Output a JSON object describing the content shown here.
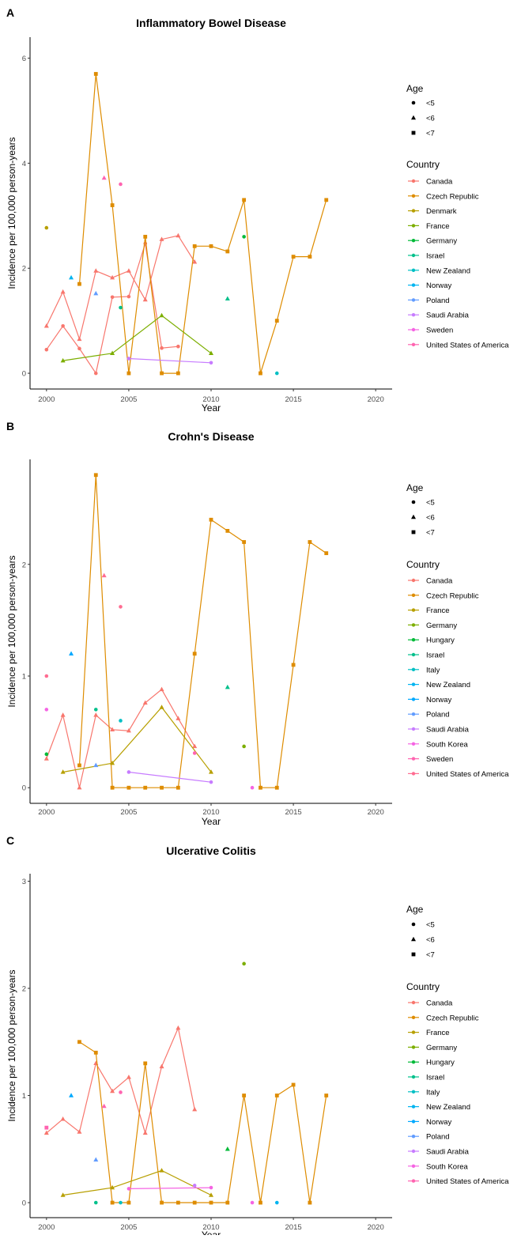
{
  "chart_data": [
    {
      "panel_label": "A",
      "type": "line",
      "title": "Inflammatory Bowel Disease",
      "xlabel": "Year",
      "ylabel": "Incidence per 100,000 person-years",
      "xlim": [
        1999,
        2021
      ],
      "ylim": [
        -0.3,
        6.4
      ],
      "xticks": [
        2000,
        2005,
        2010,
        2015,
        2020
      ],
      "yticks": [
        0,
        2,
        4,
        6
      ],
      "grid": false,
      "legend_position": "right",
      "age_legend": {
        "title": "Age",
        "entries": [
          {
            "label": "<5",
            "shape": "circle"
          },
          {
            "label": "<6",
            "shape": "triangle"
          },
          {
            "label": "<7",
            "shape": "square"
          }
        ]
      },
      "country_legend": {
        "title": "Country",
        "entries": [
          {
            "label": "Canada",
            "color": "#F8766D"
          },
          {
            "label": "Czech Republic",
            "color": "#DE8C00"
          },
          {
            "label": "Denmark",
            "color": "#B79F00"
          },
          {
            "label": "France",
            "color": "#7CAE00"
          },
          {
            "label": "Germany",
            "color": "#00BA38"
          },
          {
            "label": "Israel",
            "color": "#00C08B"
          },
          {
            "label": "New Zealand",
            "color": "#00BFC4"
          },
          {
            "label": "Norway",
            "color": "#00B4F0"
          },
          {
            "label": "Poland",
            "color": "#619CFF"
          },
          {
            "label": "Saudi Arabia",
            "color": "#C77CFF"
          },
          {
            "label": "Sweden",
            "color": "#F564E3"
          },
          {
            "label": "United States of America",
            "color": "#FF64B0"
          }
        ]
      },
      "series": [
        {
          "country": "Canada",
          "age": "<6",
          "color": "#F8766D",
          "shape": "triangle",
          "x": [
            2000,
            2001,
            2002,
            2003,
            2004,
            2005,
            2006,
            2007,
            2008,
            2009
          ],
          "y": [
            0.9,
            1.55,
            0.65,
            1.95,
            1.82,
            1.95,
            1.4,
            2.55,
            2.62,
            2.12
          ]
        },
        {
          "country": "Canada",
          "age": "<5",
          "color": "#F8766D",
          "shape": "circle",
          "x": [
            2000,
            2001,
            2002,
            2003,
            2004,
            2005,
            2006,
            2007,
            2008
          ],
          "y": [
            0.45,
            0.9,
            0.47,
            0.0,
            1.45,
            1.46,
            2.47,
            0.48,
            0.51
          ]
        },
        {
          "country": "Czech Republic",
          "age": "<7",
          "color": "#DE8C00",
          "shape": "square",
          "x": [
            2002,
            2003,
            2004,
            2005,
            2006,
            2007,
            2008,
            2009,
            2010,
            2011,
            2012,
            2013,
            2014,
            2015,
            2016,
            2017
          ],
          "y": [
            1.7,
            5.7,
            3.2,
            0.0,
            2.6,
            0.0,
            0.0,
            2.42,
            2.42,
            2.32,
            3.3,
            0.0,
            1.0,
            2.22,
            2.22,
            3.3
          ]
        },
        {
          "country": "France",
          "age": "<6",
          "color": "#7CAE00",
          "shape": "triangle",
          "x": [
            2001,
            2004,
            2007,
            2010
          ],
          "y": [
            0.24,
            0.38,
            1.1,
            0.38
          ]
        },
        {
          "country": "Saudi Arabia",
          "age": "<5",
          "color": "#C77CFF",
          "shape": "circle",
          "x": [
            2005,
            2010
          ],
          "y": [
            0.28,
            0.2
          ]
        }
      ],
      "points": [
        {
          "country": "Denmark",
          "age": "<5",
          "color": "#B79F00",
          "shape": "circle",
          "x": 2000,
          "y": 2.77
        },
        {
          "country": "Germany",
          "age": "<5",
          "color": "#00BA38",
          "shape": "circle",
          "x": 2012,
          "y": 2.6
        },
        {
          "country": "Israel",
          "age": "<6",
          "color": "#00C08B",
          "shape": "triangle",
          "x": 2011,
          "y": 1.42
        },
        {
          "country": "Israel",
          "age": "<5",
          "color": "#00C08B",
          "shape": "circle",
          "x": 2004.5,
          "y": 1.25
        },
        {
          "country": "New Zealand",
          "age": "<5",
          "color": "#00BFC4",
          "shape": "circle",
          "x": 2014,
          "y": 0.0
        },
        {
          "country": "Norway",
          "age": "<6",
          "color": "#00B4F0",
          "shape": "triangle",
          "x": 2001.5,
          "y": 1.82
        },
        {
          "country": "Poland",
          "age": "<6",
          "color": "#619CFF",
          "shape": "triangle",
          "x": 2003,
          "y": 1.52
        },
        {
          "country": "United States of America",
          "age": "<6",
          "color": "#FF64B0",
          "shape": "triangle",
          "x": 2003.5,
          "y": 3.72
        },
        {
          "country": "United States of America",
          "age": "<5",
          "color": "#FF64B0",
          "shape": "circle",
          "x": 2004.5,
          "y": 3.6
        }
      ]
    },
    {
      "panel_label": "B",
      "type": "line",
      "title": "Crohn's Disease",
      "xlabel": "Year",
      "ylabel": "Incidence per 100,000 person-years",
      "xlim": [
        1999,
        2021
      ],
      "ylim": [
        -0.14,
        2.94
      ],
      "xticks": [
        2000,
        2005,
        2010,
        2015,
        2020
      ],
      "yticks": [
        0,
        1,
        2
      ],
      "grid": false,
      "legend_position": "right",
      "age_legend": {
        "title": "Age",
        "entries": [
          {
            "label": "<5",
            "shape": "circle"
          },
          {
            "label": "<6",
            "shape": "triangle"
          },
          {
            "label": "<7",
            "shape": "square"
          }
        ]
      },
      "country_legend": {
        "title": "Country",
        "entries": [
          {
            "label": "Canada",
            "color": "#F8766D"
          },
          {
            "label": "Czech Republic",
            "color": "#DE8C00"
          },
          {
            "label": "France",
            "color": "#B79F00"
          },
          {
            "label": "Germany",
            "color": "#7CAE00"
          },
          {
            "label": "Hungary",
            "color": "#00BA38"
          },
          {
            "label": "Israel",
            "color": "#00C08B"
          },
          {
            "label": "Italy",
            "color": "#00BFC4"
          },
          {
            "label": "New Zealand",
            "color": "#00B4F0"
          },
          {
            "label": "Norway",
            "color": "#00A9FF"
          },
          {
            "label": "Poland",
            "color": "#619CFF"
          },
          {
            "label": "Saudi Arabia",
            "color": "#C77CFF"
          },
          {
            "label": "South Korea",
            "color": "#F564E3"
          },
          {
            "label": "Sweden",
            "color": "#FF64B0"
          },
          {
            "label": "United States of America",
            "color": "#FF6C91"
          }
        ]
      },
      "series": [
        {
          "country": "Canada",
          "age": "<6",
          "color": "#F8766D",
          "shape": "triangle",
          "x": [
            2000,
            2001,
            2002,
            2003,
            2004,
            2005,
            2006,
            2007,
            2008,
            2009
          ],
          "y": [
            0.26,
            0.65,
            0.0,
            0.65,
            0.52,
            0.51,
            0.76,
            0.88,
            0.62,
            0.37
          ]
        },
        {
          "country": "Czech Republic",
          "age": "<7",
          "color": "#DE8C00",
          "shape": "square",
          "x": [
            2002,
            2003,
            2004,
            2005,
            2006,
            2007,
            2008,
            2009,
            2010,
            2011,
            2012,
            2013,
            2014,
            2015,
            2016,
            2017
          ],
          "y": [
            0.2,
            2.8,
            0.0,
            0.0,
            0.0,
            0.0,
            0.0,
            1.2,
            2.4,
            2.3,
            2.2,
            0.0,
            0.0,
            1.1,
            2.2,
            2.1
          ]
        },
        {
          "country": "France",
          "age": "<6",
          "color": "#B79F00",
          "shape": "triangle",
          "x": [
            2001,
            2004,
            2007,
            2010
          ],
          "y": [
            0.14,
            0.22,
            0.72,
            0.14
          ]
        },
        {
          "country": "Saudi Arabia",
          "age": "<5",
          "color": "#C77CFF",
          "shape": "circle",
          "x": [
            2005,
            2010
          ],
          "y": [
            0.14,
            0.05
          ]
        }
      ],
      "points": [
        {
          "country": "Germany",
          "age": "<5",
          "color": "#7CAE00",
          "shape": "circle",
          "x": 2012,
          "y": 0.37
        },
        {
          "country": "Hungary",
          "age": "<5",
          "color": "#00BA38",
          "shape": "circle",
          "x": 2000,
          "y": 0.3
        },
        {
          "country": "Israel",
          "age": "<6",
          "color": "#00C08B",
          "shape": "triangle",
          "x": 2011,
          "y": 0.9
        },
        {
          "country": "Israel",
          "age": "<5",
          "color": "#00C08B",
          "shape": "circle",
          "x": 2003,
          "y": 0.7
        },
        {
          "country": "Italy",
          "age": "<5",
          "color": "#00BFC4",
          "shape": "circle",
          "x": 2004.5,
          "y": 0.6
        },
        {
          "country": "Norway",
          "age": "<6",
          "color": "#00A9FF",
          "shape": "triangle",
          "x": 2001.5,
          "y": 1.2
        },
        {
          "country": "Poland",
          "age": "<6",
          "color": "#619CFF",
          "shape": "triangle",
          "x": 2003,
          "y": 0.2
        },
        {
          "country": "South Korea",
          "age": "<5",
          "color": "#F564E3",
          "shape": "circle",
          "x": 2000,
          "y": 0.7
        },
        {
          "country": "South Korea",
          "age": "<5",
          "color": "#F564E3",
          "shape": "circle",
          "x": 2012.5,
          "y": 0.0
        },
        {
          "country": "Sweden",
          "age": "<5",
          "color": "#FF64B0",
          "shape": "circle",
          "x": 2009,
          "y": 0.31
        },
        {
          "country": "United States of America",
          "age": "<5",
          "color": "#FF6C91",
          "shape": "circle",
          "x": 2000,
          "y": 1.0
        },
        {
          "country": "United States of America",
          "age": "<6",
          "color": "#FF6C91",
          "shape": "triangle",
          "x": 2003.5,
          "y": 1.9
        },
        {
          "country": "United States of America",
          "age": "<5",
          "color": "#FF6C91",
          "shape": "circle",
          "x": 2004.5,
          "y": 1.62
        }
      ]
    },
    {
      "panel_label": "C",
      "type": "line",
      "title": "Ulcerative Colitis",
      "xlabel": "Year",
      "ylabel": "Incidence per 100,000 person-years",
      "xlim": [
        1999,
        2021
      ],
      "ylim": [
        -0.14,
        3.07
      ],
      "xticks": [
        2000,
        2005,
        2010,
        2015,
        2020
      ],
      "yticks": [
        0,
        1,
        2,
        3
      ],
      "grid": false,
      "legend_position": "right",
      "age_legend": {
        "title": "Age",
        "entries": [
          {
            "label": "<5",
            "shape": "circle"
          },
          {
            "label": "<6",
            "shape": "triangle"
          },
          {
            "label": "<7",
            "shape": "square"
          }
        ]
      },
      "country_legend": {
        "title": "Country",
        "entries": [
          {
            "label": "Canada",
            "color": "#F8766D"
          },
          {
            "label": "Czech Republic",
            "color": "#DE8C00"
          },
          {
            "label": "France",
            "color": "#B79F00"
          },
          {
            "label": "Germany",
            "color": "#7CAE00"
          },
          {
            "label": "Hungary",
            "color": "#00BA38"
          },
          {
            "label": "Israel",
            "color": "#00C08B"
          },
          {
            "label": "Italy",
            "color": "#00BFC4"
          },
          {
            "label": "New Zealand",
            "color": "#00B4F0"
          },
          {
            "label": "Norway",
            "color": "#00A9FF"
          },
          {
            "label": "Poland",
            "color": "#619CFF"
          },
          {
            "label": "Saudi Arabia",
            "color": "#C77CFF"
          },
          {
            "label": "South Korea",
            "color": "#F564E3"
          },
          {
            "label": "United States of America",
            "color": "#FF64B0"
          }
        ]
      },
      "series": [
        {
          "country": "Canada",
          "age": "<6",
          "color": "#F8766D",
          "shape": "triangle",
          "x": [
            2000,
            2001,
            2002,
            2003,
            2004,
            2005,
            2006,
            2007,
            2008,
            2009
          ],
          "y": [
            0.65,
            0.78,
            0.66,
            1.3,
            1.04,
            1.17,
            0.65,
            1.27,
            1.63,
            0.87
          ]
        },
        {
          "country": "Czech Republic",
          "age": "<7",
          "color": "#DE8C00",
          "shape": "square",
          "x": [
            2002,
            2003,
            2004,
            2005,
            2006,
            2007,
            2008,
            2009,
            2010,
            2011,
            2012,
            2013,
            2014,
            2015,
            2016,
            2017
          ],
          "y": [
            1.5,
            1.4,
            0.0,
            0.0,
            1.3,
            0.0,
            0.0,
            0.0,
            0.0,
            0.0,
            1.0,
            0.0,
            1.0,
            1.1,
            0.0,
            1.0
          ]
        },
        {
          "country": "France",
          "age": "<6",
          "color": "#B79F00",
          "shape": "triangle",
          "x": [
            2001,
            2004,
            2007,
            2010
          ],
          "y": [
            0.07,
            0.14,
            0.3,
            0.07
          ]
        },
        {
          "country": "South Korea",
          "age": "<5",
          "color": "#F564E3",
          "shape": "circle",
          "x": [
            2005,
            2010
          ],
          "y": [
            0.13,
            0.14
          ]
        }
      ],
      "points": [
        {
          "country": "Germany",
          "age": "<5",
          "color": "#7CAE00",
          "shape": "circle",
          "x": 2012,
          "y": 2.23
        },
        {
          "country": "Hungary",
          "age": "<6",
          "color": "#00BA38",
          "shape": "triangle",
          "x": 2011,
          "y": 0.5
        },
        {
          "country": "Israel",
          "age": "<5",
          "color": "#00C08B",
          "shape": "circle",
          "x": 2003,
          "y": 0.0
        },
        {
          "country": "Italy",
          "age": "<5",
          "color": "#00BFC4",
          "shape": "circle",
          "x": 2004.5,
          "y": 0.0
        },
        {
          "country": "New Zealand",
          "age": "<5",
          "color": "#00B4F0",
          "shape": "circle",
          "x": 2014,
          "y": 0.0
        },
        {
          "country": "Norway",
          "age": "<6",
          "color": "#00A9FF",
          "shape": "triangle",
          "x": 2001.5,
          "y": 1.0
        },
        {
          "country": "Poland",
          "age": "<6",
          "color": "#619CFF",
          "shape": "triangle",
          "x": 2003,
          "y": 0.4
        },
        {
          "country": "Saudi Arabia",
          "age": "<5",
          "color": "#C77CFF",
          "shape": "circle",
          "x": 2009,
          "y": 0.16
        },
        {
          "country": "South Korea",
          "age": "<5",
          "color": "#F564E3",
          "shape": "circle",
          "x": 2012.5,
          "y": 0.0
        },
        {
          "country": "United States of America",
          "age": "<7",
          "color": "#FF64B0",
          "shape": "square",
          "x": 2000,
          "y": 0.7
        },
        {
          "country": "United States of America",
          "age": "<6",
          "color": "#FF64B0",
          "shape": "triangle",
          "x": 2003.5,
          "y": 0.9
        },
        {
          "country": "United States of America",
          "age": "<5",
          "color": "#FF64B0",
          "shape": "circle",
          "x": 2004.5,
          "y": 1.03
        }
      ]
    }
  ]
}
